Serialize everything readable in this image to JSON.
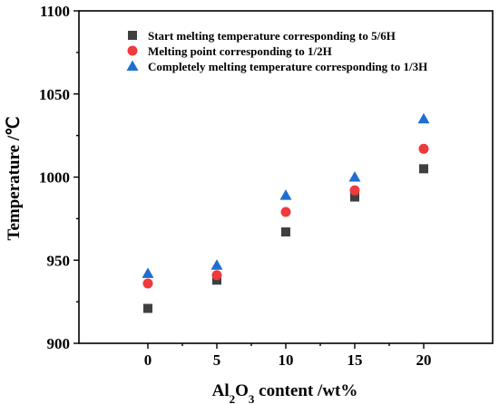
{
  "chart_data": {
    "type": "scatter",
    "x": [
      0,
      5,
      10,
      15,
      20
    ],
    "xlim": [
      -5,
      25
    ],
    "ylim": [
      900,
      1100
    ],
    "xticks": [
      "0",
      "5",
      "10",
      "15",
      "20"
    ],
    "yticks": [
      "900",
      "950",
      "1000",
      "1050",
      "1100"
    ],
    "xlabel": {
      "main": "Al",
      "sub1": "2",
      "mid": "O",
      "sub2": "3",
      "rest": " content /wt%"
    },
    "ylabel": "Temperature /℃",
    "legend_position": "top-center",
    "grid": false,
    "series": [
      {
        "name": "Start melting temperature corresponding to 5/6H",
        "marker": "square",
        "color": "#404040",
        "values": [
          921,
          938,
          967,
          988,
          1005
        ]
      },
      {
        "name": "Melting point corresponding to 1/2H",
        "marker": "circle",
        "color": "#ee3b3b",
        "values": [
          936,
          941,
          979,
          992,
          1017
        ]
      },
      {
        "name": "Completely melting temperature corresponding to 1/3H",
        "marker": "triangle",
        "color": "#1f6fd1",
        "values": [
          942,
          947,
          989,
          1000,
          1035
        ]
      }
    ]
  }
}
